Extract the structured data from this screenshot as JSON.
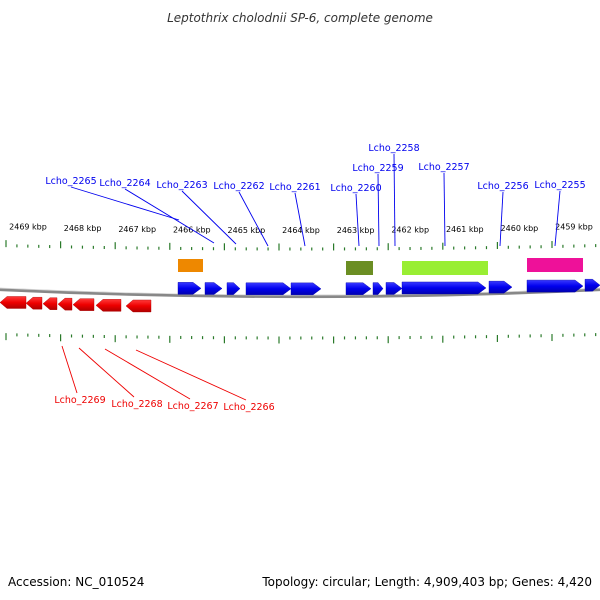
{
  "title": "Leptothrix cholodnii SP-6, complete genome",
  "accession": "Accession: NC_010524",
  "summary": "Topology: circular; Length: 4,909,403 bp; Genes: 4,420",
  "colors": {
    "forward": "#0000ee",
    "reverse": "#ee0000",
    "tick": "#2a7a2a",
    "backbone": "#888888"
  },
  "kbp_ticks": [
    "2469 kbp",
    "2468 kbp",
    "2467 kbp",
    "2466 kbp",
    "2465 kbp",
    "2464 kbp",
    "2463 kbp",
    "2462 kbp",
    "2461 kbp",
    "2460 kbp",
    "2459 kbp"
  ],
  "forward_labels": [
    "Lcho_2265",
    "Lcho_2264",
    "Lcho_2263",
    "Lcho_2262",
    "Lcho_2261",
    "Lcho_2260",
    "Lcho_2259",
    "Lcho_2258",
    "Lcho_2257",
    "Lcho_2256",
    "Lcho_2255"
  ],
  "reverse_labels": [
    "Lcho_2269",
    "Lcho_2268",
    "Lcho_2267",
    "Lcho_2266"
  ],
  "feature_colors": [
    "#ee8800",
    "#6b8e23",
    "#99ee33",
    "#ee1199"
  ]
}
